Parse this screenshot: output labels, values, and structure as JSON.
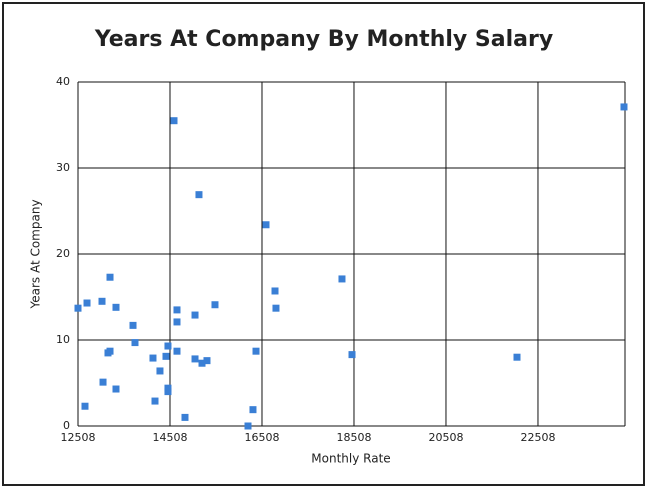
{
  "chart_data": {
    "type": "scatter",
    "title": "Years At Company By Monthly Salary",
    "x_label": "Monthly Rate",
    "y_label": "Years At Company",
    "color": "#3a7fd5",
    "grid": true,
    "x": [
      12508,
      12704,
      12660,
      13030,
      13052,
      13160,
      13204,
      13204,
      13334,
      13334,
      13704,
      13747,
      14138,
      14182,
      14290,
      14421,
      14464,
      14464,
      14464,
      14595,
      14660,
      14660,
      14660,
      14834,
      15052,
      15052,
      15138,
      15204,
      15312,
      15486,
      16204,
      16312,
      16378,
      16595,
      16791,
      16812,
      18247,
      18465,
      22052,
      24378
    ],
    "values": [
      13.7,
      14.3,
      2.3,
      14.5,
      5.1,
      8.5,
      8.7,
      17.3,
      13.8,
      4.3,
      11.7,
      9.7,
      7.9,
      2.9,
      6.4,
      8.1,
      9.3,
      4.4,
      4.0,
      35.5,
      13.5,
      12.1,
      8.7,
      1.0,
      12.9,
      7.8,
      26.9,
      7.3,
      7.6,
      14.1,
      0,
      1.9,
      8.7,
      23.4,
      15.7,
      13.7,
      17.1,
      8.3,
      8.0,
      37.1
    ],
    "xlim": [
      12508,
      24400
    ],
    "xticks": [
      12508,
      14508,
      16508,
      18508,
      20508,
      22508
    ],
    "ylim": [
      0,
      40
    ],
    "yticks": [
      0,
      10,
      20,
      30,
      40
    ]
  }
}
